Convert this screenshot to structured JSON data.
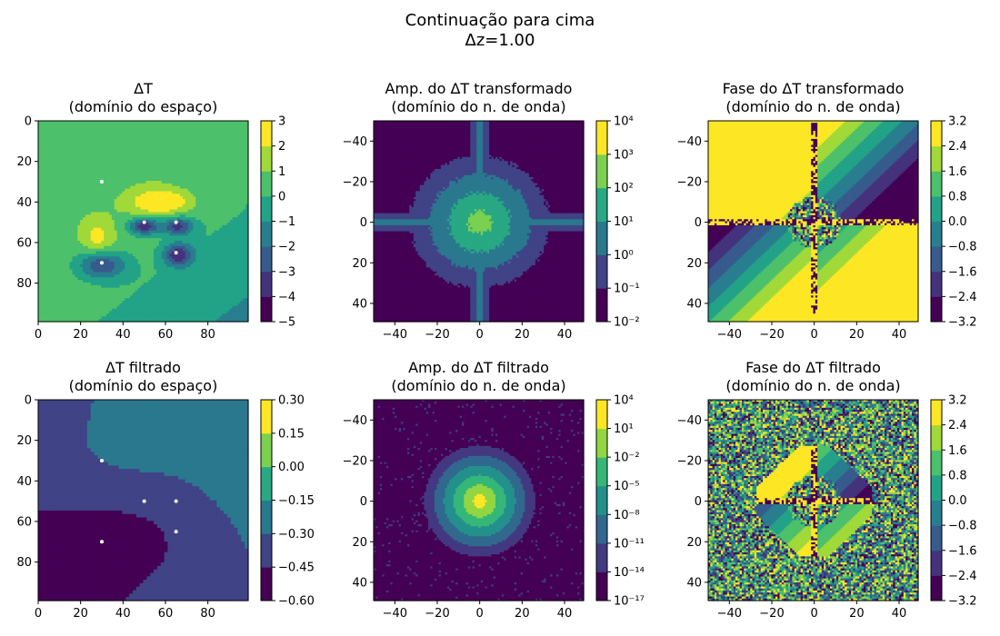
{
  "figure": {
    "title_line1": "Continuação para cima",
    "title_line2": "Δz=1.00"
  },
  "chart_data": [
    {
      "id": "p1",
      "type": "heatmap",
      "title": [
        "ΔT",
        "(domínio do espaço)"
      ],
      "xlim": [
        0,
        99
      ],
      "ylim": [
        99,
        0
      ],
      "xticks": [
        0,
        20,
        40,
        60,
        80
      ],
      "yticks": [
        0,
        20,
        40,
        60,
        80
      ],
      "tick_labels_x": [
        "0",
        "20",
        "40",
        "60",
        "80"
      ],
      "tick_labels_y": [
        "0",
        "20",
        "40",
        "60",
        "80"
      ],
      "colorbar": {
        "levels": [
          -5,
          -4,
          -3,
          -2,
          -1,
          0,
          1,
          2,
          3
        ],
        "tick_labels": [
          "−5",
          "−4",
          "−3",
          "−2",
          "−1",
          "0",
          "1",
          "2",
          "3"
        ]
      },
      "markers": [
        [
          30,
          30
        ],
        [
          50,
          50
        ],
        [
          65,
          50
        ],
        [
          65,
          65
        ],
        [
          30,
          70
        ]
      ],
      "description": "Contours of field anomalies: positive lobe near (55,40), negatives near (50,52),(65,52),(65,66),(30,72)"
    },
    {
      "id": "p2",
      "type": "heatmap",
      "title": [
        "Amp. do ΔT transformado",
        "(domínio do n. de onda)"
      ],
      "xlim": [
        -50,
        49
      ],
      "ylim": [
        49,
        -50
      ],
      "xticks": [
        -40,
        -20,
        0,
        20,
        40
      ],
      "yticks": [
        -40,
        -20,
        0,
        20,
        40
      ],
      "tick_labels_x": [
        "−40",
        "−20",
        "0",
        "20",
        "40"
      ],
      "tick_labels_y": [
        "−40",
        "−20",
        "0",
        "20",
        "40"
      ],
      "colorbar": {
        "levels_exp": [
          -2,
          -1,
          0,
          1,
          2,
          3,
          4
        ],
        "tick_labels": [
          "10⁻²",
          "10⁻¹",
          "10⁰",
          "10¹",
          "10²",
          "10³",
          "10⁴"
        ]
      }
    },
    {
      "id": "p3",
      "type": "heatmap",
      "title": [
        "Fase do ΔT transformado",
        "(domínio do n. de onda)"
      ],
      "xlim": [
        -50,
        49
      ],
      "ylim": [
        49,
        -50
      ],
      "xticks": [
        -40,
        -20,
        0,
        20,
        40
      ],
      "yticks": [
        -40,
        -20,
        0,
        20,
        40
      ],
      "tick_labels_x": [
        "−40",
        "−20",
        "0",
        "20",
        "40"
      ],
      "tick_labels_y": [
        "−40",
        "−20",
        "0",
        "20",
        "40"
      ],
      "colorbar": {
        "levels": [
          -3.2,
          -2.4,
          -1.6,
          -0.8,
          0.0,
          0.8,
          1.6,
          2.4,
          3.2
        ],
        "tick_labels": [
          "−3.2",
          "−2.4",
          "−1.6",
          "−0.8",
          "0.0",
          "0.8",
          "1.6",
          "2.4",
          "3.2"
        ]
      }
    },
    {
      "id": "p4",
      "type": "heatmap",
      "title": [
        "ΔT filtrado",
        "(domínio do espaço)"
      ],
      "xlim": [
        0,
        99
      ],
      "ylim": [
        99,
        0
      ],
      "xticks": [
        0,
        20,
        40,
        60,
        80
      ],
      "yticks": [
        0,
        20,
        40,
        60,
        80
      ],
      "tick_labels_x": [
        "0",
        "20",
        "40",
        "60",
        "80"
      ],
      "tick_labels_y": [
        "0",
        "20",
        "40",
        "60",
        "80"
      ],
      "colorbar": {
        "levels": [
          -0.6,
          -0.45,
          -0.3,
          -0.15,
          0.0,
          0.15,
          0.3
        ],
        "tick_labels": [
          "−0.60",
          "−0.45",
          "−0.30",
          "−0.15",
          "0.00",
          "0.15",
          "0.30"
        ]
      },
      "markers": [
        [
          30,
          30
        ],
        [
          50,
          50
        ],
        [
          65,
          50
        ],
        [
          65,
          65
        ],
        [
          30,
          70
        ]
      ]
    },
    {
      "id": "p5",
      "type": "heatmap",
      "title": [
        "Amp. do ΔT filtrado",
        "(domínio do n. de onda)"
      ],
      "xlim": [
        -50,
        49
      ],
      "ylim": [
        49,
        -50
      ],
      "xticks": [
        -40,
        -20,
        0,
        20,
        40
      ],
      "yticks": [
        -40,
        -20,
        0,
        20,
        40
      ],
      "tick_labels_x": [
        "−40",
        "−20",
        "0",
        "20",
        "40"
      ],
      "tick_labels_y": [
        "−40",
        "−20",
        "0",
        "20",
        "40"
      ],
      "colorbar": {
        "levels_exp": [
          -17,
          -14,
          -11,
          -8,
          -5,
          -2,
          1,
          4
        ],
        "tick_labels": [
          "10⁻¹⁷",
          "10⁻¹⁴",
          "10⁻¹¹",
          "10⁻⁸",
          "10⁻⁵",
          "10⁻²",
          "10¹",
          "10⁴"
        ]
      }
    },
    {
      "id": "p6",
      "type": "heatmap",
      "title": [
        "Fase do ΔT filtrado",
        "(domínio do n. de onda)"
      ],
      "xlim": [
        -50,
        49
      ],
      "ylim": [
        49,
        -50
      ],
      "xticks": [
        -40,
        -20,
        0,
        20,
        40
      ],
      "yticks": [
        -40,
        -20,
        0,
        20,
        40
      ],
      "tick_labels_x": [
        "−40",
        "−20",
        "0",
        "20",
        "40"
      ],
      "tick_labels_y": [
        "−40",
        "−20",
        "0",
        "20",
        "40"
      ],
      "colorbar": {
        "levels": [
          -3.2,
          -2.4,
          -1.6,
          -0.8,
          0.0,
          0.8,
          1.6,
          2.4,
          3.2
        ],
        "tick_labels": [
          "−3.2",
          "−2.4",
          "−1.6",
          "−0.8",
          "0.0",
          "0.8",
          "1.6",
          "2.4",
          "3.2"
        ]
      }
    }
  ],
  "colors": {
    "viridis": [
      "#440154",
      "#472c7a",
      "#3b518b",
      "#2c718e",
      "#21908d",
      "#27ad81",
      "#5cc863",
      "#aadc32",
      "#fde725"
    ]
  }
}
